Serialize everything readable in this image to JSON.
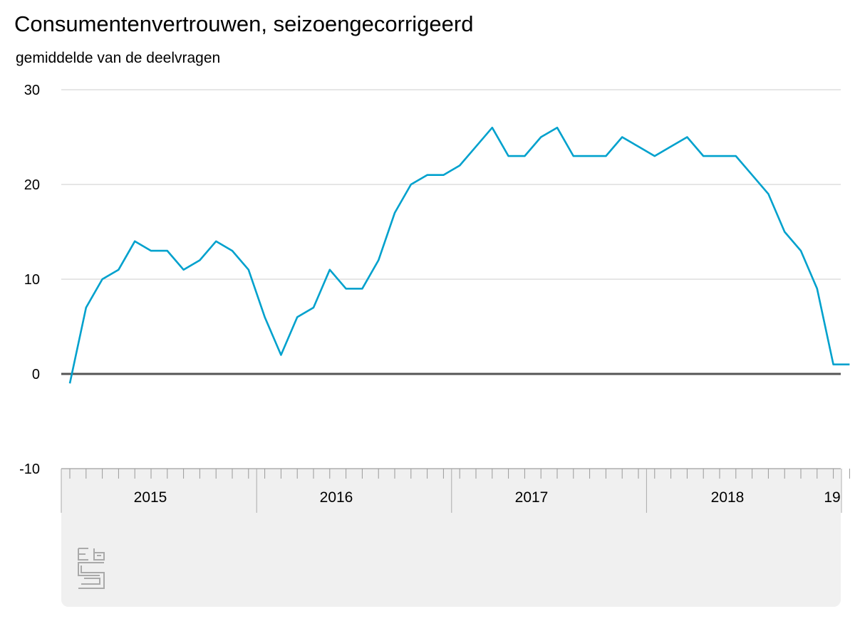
{
  "chart_data": {
    "type": "line",
    "title": "Consumentenvertrouwen, seizoengecorrigeerd",
    "subtitle": "gemiddelde van de deelvragen",
    "xlabel": "",
    "ylabel": "",
    "ylim": [
      -10,
      30
    ],
    "yticks": [
      "30",
      "20",
      "10",
      "0",
      "-10"
    ],
    "grid": true,
    "legend": "none",
    "x_category_labels": [
      "2015",
      "2016",
      "2017",
      "2018",
      "19"
    ],
    "series": [
      {
        "color": "#00a1cd",
        "x": [
          "2015-01",
          "2015-02",
          "2015-03",
          "2015-04",
          "2015-05",
          "2015-06",
          "2015-07",
          "2015-08",
          "2015-09",
          "2015-10",
          "2015-11",
          "2015-12",
          "2016-01",
          "2016-02",
          "2016-03",
          "2016-04",
          "2016-05",
          "2016-06",
          "2016-07",
          "2016-08",
          "2016-09",
          "2016-10",
          "2016-11",
          "2016-12",
          "2017-01",
          "2017-02",
          "2017-03",
          "2017-04",
          "2017-05",
          "2017-06",
          "2017-07",
          "2017-08",
          "2017-09",
          "2017-10",
          "2017-11",
          "2017-12",
          "2018-01",
          "2018-02",
          "2018-03",
          "2018-04",
          "2018-05",
          "2018-06",
          "2018-07",
          "2018-08",
          "2018-09",
          "2018-10",
          "2018-11",
          "2018-12",
          "2019-01"
        ],
        "values": [
          -1,
          7,
          10,
          11,
          14,
          13,
          13,
          11,
          12,
          14,
          13,
          11,
          6,
          2,
          6,
          7,
          11,
          9,
          9,
          12,
          17,
          20,
          21,
          21,
          22,
          24,
          26,
          23,
          23,
          25,
          26,
          23,
          23,
          23,
          25,
          24,
          23,
          24,
          25,
          23,
          23,
          23,
          21,
          19,
          15,
          13,
          9,
          1,
          1
        ]
      }
    ]
  },
  "colors": {
    "line": "#00a1cd",
    "grid": "#cccccc",
    "zero_line": "#555555",
    "panel": "#f0f0f0"
  },
  "logo": {
    "icon": "cbs-logo-icon",
    "text": "cbs"
  }
}
